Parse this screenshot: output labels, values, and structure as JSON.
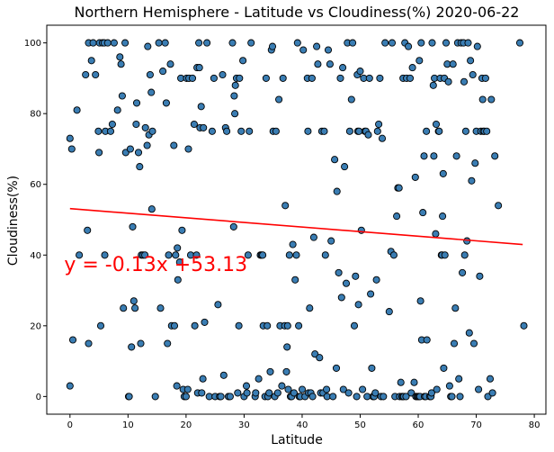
{
  "chart_data": {
    "type": "scatter",
    "title": "Northern Hemisphere - Latitude vs Cloudiness(%) 2020-06-22",
    "xlabel": "Latitude",
    "ylabel": "Cloudiness(%)",
    "xlim": [
      -4,
      82
    ],
    "ylim": [
      -5,
      105
    ],
    "xticks": [
      0,
      10,
      20,
      30,
      40,
      50,
      60,
      70,
      80
    ],
    "yticks": [
      0,
      20,
      40,
      60,
      80,
      100
    ],
    "grid": false,
    "point_color": "#3a7db3",
    "point_edge_color": "#000000",
    "regression": {
      "slope": -0.13,
      "intercept": 53.13,
      "x_range": [
        0,
        78
      ],
      "color": "#ff0000",
      "equation": "y = -0.13x +53.13",
      "equation_position": [
        -1,
        35.5
      ]
    },
    "points": [
      [
        0,
        73
      ],
      [
        0,
        3
      ],
      [
        0.3,
        70
      ],
      [
        0.5,
        16
      ],
      [
        1.2,
        81
      ],
      [
        1.6,
        40
      ],
      [
        2.7,
        91
      ],
      [
        3,
        47
      ],
      [
        3.2,
        15
      ],
      [
        3.2,
        100
      ],
      [
        3.7,
        95
      ],
      [
        4,
        100
      ],
      [
        4.4,
        91
      ],
      [
        4.9,
        75
      ],
      [
        5,
        69
      ],
      [
        5.1,
        100
      ],
      [
        5.3,
        20
      ],
      [
        5.6,
        100
      ],
      [
        5.9,
        100
      ],
      [
        6,
        40
      ],
      [
        6.1,
        75
      ],
      [
        6.5,
        100
      ],
      [
        7,
        75
      ],
      [
        7.3,
        77
      ],
      [
        7.6,
        100
      ],
      [
        8.2,
        81
      ],
      [
        8.6,
        96
      ],
      [
        8.8,
        94
      ],
      [
        9,
        85
      ],
      [
        9.2,
        25
      ],
      [
        9.5,
        100
      ],
      [
        9.6,
        69
      ],
      [
        10.1,
        0
      ],
      [
        10.2,
        0
      ],
      [
        10.4,
        70
      ],
      [
        10.6,
        14
      ],
      [
        10.8,
        48
      ],
      [
        11,
        27
      ],
      [
        11.2,
        25
      ],
      [
        11.4,
        77
      ],
      [
        11.5,
        83
      ],
      [
        11.8,
        69
      ],
      [
        12,
        65
      ],
      [
        12.2,
        15
      ],
      [
        12.3,
        40
      ],
      [
        12.6,
        40
      ],
      [
        12.9,
        40
      ],
      [
        13,
        76
      ],
      [
        13.3,
        71
      ],
      [
        13.4,
        99
      ],
      [
        13.6,
        74
      ],
      [
        13.8,
        91
      ],
      [
        14,
        86
      ],
      [
        14.1,
        53
      ],
      [
        14.2,
        75
      ],
      [
        14.7,
        0
      ],
      [
        15.3,
        100
      ],
      [
        15.6,
        25
      ],
      [
        16,
        92
      ],
      [
        16.4,
        100
      ],
      [
        16.6,
        83
      ],
      [
        16.8,
        15
      ],
      [
        17,
        40
      ],
      [
        17.3,
        94
      ],
      [
        17.5,
        20
      ],
      [
        17.9,
        71
      ],
      [
        18,
        20
      ],
      [
        18.2,
        40
      ],
      [
        18.4,
        3
      ],
      [
        18.5,
        42
      ],
      [
        18.6,
        33
      ],
      [
        18.9,
        38
      ],
      [
        19.1,
        90
      ],
      [
        19.3,
        47
      ],
      [
        19.5,
        2
      ],
      [
        19.7,
        0
      ],
      [
        20,
        0
      ],
      [
        20.1,
        90
      ],
      [
        20.3,
        2
      ],
      [
        20.4,
        70
      ],
      [
        20.5,
        90
      ],
      [
        20.8,
        40
      ],
      [
        21.1,
        90
      ],
      [
        21.4,
        77
      ],
      [
        21.5,
        20
      ],
      [
        21.8,
        40
      ],
      [
        21.9,
        93
      ],
      [
        22,
        1
      ],
      [
        22.2,
        100
      ],
      [
        22.3,
        93
      ],
      [
        22.4,
        76
      ],
      [
        22.6,
        82
      ],
      [
        22.7,
        1
      ],
      [
        22.9,
        5
      ],
      [
        23,
        76
      ],
      [
        23.2,
        21
      ],
      [
        23.6,
        100
      ],
      [
        24,
        0
      ],
      [
        24.5,
        75
      ],
      [
        24.8,
        90
      ],
      [
        25,
        0
      ],
      [
        25.5,
        26
      ],
      [
        25.8,
        0
      ],
      [
        26,
        0
      ],
      [
        26.3,
        91
      ],
      [
        26.5,
        6
      ],
      [
        26.8,
        76
      ],
      [
        27,
        75
      ],
      [
        27.3,
        0
      ],
      [
        27.6,
        0
      ],
      [
        28,
        100
      ],
      [
        28.2,
        48
      ],
      [
        28.3,
        85
      ],
      [
        28.4,
        80
      ],
      [
        28.5,
        88
      ],
      [
        28.7,
        90
      ],
      [
        28.9,
        1
      ],
      [
        29.1,
        20
      ],
      [
        29.2,
        90
      ],
      [
        29.5,
        75
      ],
      [
        29.8,
        95
      ],
      [
        30,
        0
      ],
      [
        30.4,
        3
      ],
      [
        30.5,
        1
      ],
      [
        30.7,
        40
      ],
      [
        30.9,
        75
      ],
      [
        31.2,
        100
      ],
      [
        31.9,
        0
      ],
      [
        32,
        1
      ],
      [
        32.5,
        5
      ],
      [
        32.8,
        40
      ],
      [
        33,
        40
      ],
      [
        33.2,
        40
      ],
      [
        33.3,
        20
      ],
      [
        33.6,
        0
      ],
      [
        33.8,
        90
      ],
      [
        34,
        20
      ],
      [
        34.1,
        0
      ],
      [
        34.3,
        1
      ],
      [
        34.5,
        7
      ],
      [
        34.7,
        98
      ],
      [
        34.9,
        99
      ],
      [
        35,
        75
      ],
      [
        35.3,
        0
      ],
      [
        35.5,
        75
      ],
      [
        35.8,
        1
      ],
      [
        36,
        84
      ],
      [
        36.2,
        20
      ],
      [
        36.5,
        3
      ],
      [
        36.7,
        90
      ],
      [
        37,
        20
      ],
      [
        37.1,
        54
      ],
      [
        37.3,
        7
      ],
      [
        37.4,
        14
      ],
      [
        37.5,
        20
      ],
      [
        37.6,
        2
      ],
      [
        37.8,
        40
      ],
      [
        38,
        0
      ],
      [
        38.2,
        0
      ],
      [
        38.4,
        43
      ],
      [
        38.6,
        1
      ],
      [
        38.8,
        33
      ],
      [
        39,
        40
      ],
      [
        39.2,
        100
      ],
      [
        39.4,
        20
      ],
      [
        39.5,
        0
      ],
      [
        39.7,
        0
      ],
      [
        40,
        2
      ],
      [
        40.2,
        98
      ],
      [
        40.5,
        0
      ],
      [
        40.9,
        90
      ],
      [
        41,
        75
      ],
      [
        41.1,
        1
      ],
      [
        41.3,
        25
      ],
      [
        41.5,
        1
      ],
      [
        41.7,
        90
      ],
      [
        41.8,
        0
      ],
      [
        42,
        45
      ],
      [
        42.2,
        12
      ],
      [
        42.5,
        99
      ],
      [
        42.7,
        94
      ],
      [
        43,
        11
      ],
      [
        43.2,
        1
      ],
      [
        43.4,
        75
      ],
      [
        43.6,
        1
      ],
      [
        43.8,
        75
      ],
      [
        44,
        40
      ],
      [
        44.2,
        2
      ],
      [
        44.3,
        0
      ],
      [
        44.5,
        98
      ],
      [
        44.8,
        94
      ],
      [
        45,
        44
      ],
      [
        45.3,
        0
      ],
      [
        45.6,
        67
      ],
      [
        45.9,
        8
      ],
      [
        46,
        58
      ],
      [
        46.3,
        35
      ],
      [
        46.6,
        90
      ],
      [
        46.8,
        28
      ],
      [
        47,
        93
      ],
      [
        47.1,
        2
      ],
      [
        47.3,
        65
      ],
      [
        47.6,
        32
      ],
      [
        47.8,
        100
      ],
      [
        48,
        1
      ],
      [
        48.2,
        75
      ],
      [
        48.5,
        84
      ],
      [
        48.7,
        100
      ],
      [
        49,
        20
      ],
      [
        49.2,
        34
      ],
      [
        49.4,
        0
      ],
      [
        49.5,
        91
      ],
      [
        49.6,
        75
      ],
      [
        49.7,
        26
      ],
      [
        49.8,
        75
      ],
      [
        50,
        92
      ],
      [
        50.2,
        47
      ],
      [
        50.4,
        2
      ],
      [
        50.6,
        90
      ],
      [
        50.8,
        75
      ],
      [
        51,
        75
      ],
      [
        51.2,
        0
      ],
      [
        51.4,
        74
      ],
      [
        51.6,
        90
      ],
      [
        51.8,
        29
      ],
      [
        52,
        8
      ],
      [
        52.2,
        0
      ],
      [
        52.4,
        0
      ],
      [
        52.6,
        1
      ],
      [
        52.8,
        33
      ],
      [
        53,
        75
      ],
      [
        53.2,
        77
      ],
      [
        53.4,
        90
      ],
      [
        53.6,
        0
      ],
      [
        53.8,
        73
      ],
      [
        54,
        0
      ],
      [
        54.3,
        100
      ],
      [
        55,
        24
      ],
      [
        55.3,
        41
      ],
      [
        55.5,
        100
      ],
      [
        55.8,
        40
      ],
      [
        56,
        0
      ],
      [
        56.3,
        51
      ],
      [
        56.5,
        59
      ],
      [
        56.7,
        59
      ],
      [
        56.8,
        0
      ],
      [
        57,
        4
      ],
      [
        57.2,
        0
      ],
      [
        57.3,
        0
      ],
      [
        57.4,
        90
      ],
      [
        57.5,
        0
      ],
      [
        57.7,
        100
      ],
      [
        57.9,
        0
      ],
      [
        58,
        90
      ],
      [
        58.3,
        99
      ],
      [
        58.6,
        90
      ],
      [
        58.8,
        1
      ],
      [
        59,
        93
      ],
      [
        59.3,
        4
      ],
      [
        59.5,
        62
      ],
      [
        59.6,
        0
      ],
      [
        59.8,
        0
      ],
      [
        60,
        0
      ],
      [
        60.1,
        0
      ],
      [
        60.2,
        95
      ],
      [
        60.3,
        0
      ],
      [
        60.4,
        27
      ],
      [
        60.5,
        100
      ],
      [
        60.6,
        16
      ],
      [
        60.8,
        52
      ],
      [
        61,
        68
      ],
      [
        61.1,
        0
      ],
      [
        61.3,
        0
      ],
      [
        61.4,
        75
      ],
      [
        61.5,
        16
      ],
      [
        62,
        0
      ],
      [
        62.2,
        0
      ],
      [
        62.3,
        1
      ],
      [
        62.4,
        100
      ],
      [
        62.6,
        88
      ],
      [
        62.7,
        68
      ],
      [
        62.8,
        90
      ],
      [
        63,
        46
      ],
      [
        63.1,
        77
      ],
      [
        63.2,
        2
      ],
      [
        63.5,
        75
      ],
      [
        63.6,
        75
      ],
      [
        63.8,
        90
      ],
      [
        64,
        40
      ],
      [
        64.1,
        40
      ],
      [
        64.2,
        51
      ],
      [
        64.3,
        63
      ],
      [
        64.4,
        8
      ],
      [
        64.5,
        90
      ],
      [
        64.6,
        40
      ],
      [
        64.8,
        100
      ],
      [
        65,
        94
      ],
      [
        65.2,
        89
      ],
      [
        65.4,
        3
      ],
      [
        65.6,
        0
      ],
      [
        65.8,
        0
      ],
      [
        66,
        94
      ],
      [
        66.2,
        15
      ],
      [
        66.4,
        25
      ],
      [
        66.6,
        68
      ],
      [
        66.8,
        100
      ],
      [
        67,
        5
      ],
      [
        67.2,
        0
      ],
      [
        67.4,
        100
      ],
      [
        67.6,
        35
      ],
      [
        67.8,
        100
      ],
      [
        67.9,
        89
      ],
      [
        68,
        40
      ],
      [
        68.2,
        75
      ],
      [
        68.4,
        44
      ],
      [
        68.6,
        100
      ],
      [
        68.8,
        18
      ],
      [
        69,
        95
      ],
      [
        69.2,
        61
      ],
      [
        69.4,
        91
      ],
      [
        69.6,
        15
      ],
      [
        69.8,
        66
      ],
      [
        70,
        75
      ],
      [
        70.2,
        99
      ],
      [
        70.4,
        2
      ],
      [
        70.6,
        34
      ],
      [
        70.8,
        75
      ],
      [
        71,
        90
      ],
      [
        71.1,
        84
      ],
      [
        71.2,
        75
      ],
      [
        71.4,
        75
      ],
      [
        71.6,
        90
      ],
      [
        71.8,
        75
      ],
      [
        72,
        0
      ],
      [
        72.4,
        5
      ],
      [
        72.6,
        84
      ],
      [
        72.8,
        1
      ],
      [
        73.2,
        68
      ],
      [
        73.8,
        54
      ],
      [
        77.5,
        100
      ],
      [
        78.2,
        20
      ]
    ]
  }
}
